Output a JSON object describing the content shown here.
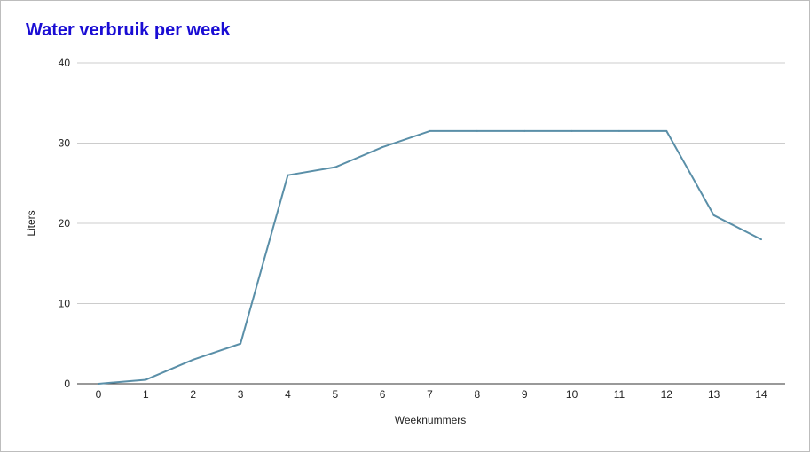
{
  "chart_data": {
    "type": "line",
    "title": "Water verbruik per week",
    "xlabel": "Weeknummers",
    "ylabel": "Liters",
    "x": [
      0,
      1,
      2,
      3,
      4,
      5,
      6,
      7,
      8,
      9,
      10,
      11,
      12,
      13,
      14
    ],
    "series": [
      {
        "values": [
          0,
          0.5,
          3,
          5,
          26,
          27,
          29.5,
          31.5,
          31.5,
          31.5,
          31.5,
          31.5,
          31.5,
          21,
          18
        ]
      }
    ],
    "xlim": [
      0,
      14
    ],
    "ylim": [
      0,
      40
    ],
    "yticks": [
      0,
      10,
      20,
      30,
      40
    ],
    "grid": true,
    "legend": "none",
    "colors": {
      "title": "#1a0dd4",
      "line": "#5a8fa8",
      "grid": "#cccccc",
      "axis": "#333333",
      "text": "#222222"
    }
  }
}
